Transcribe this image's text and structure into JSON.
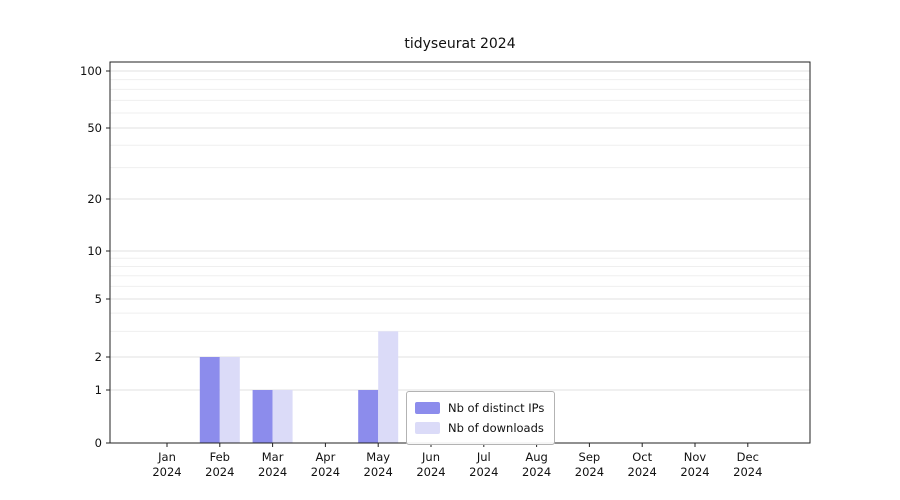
{
  "chart_data": {
    "type": "bar",
    "title": "tidyseurat 2024",
    "categories": [
      "Jan",
      "Feb",
      "Mar",
      "Apr",
      "May",
      "Jun",
      "Jul",
      "Aug",
      "Sep",
      "Oct",
      "Nov",
      "Dec"
    ],
    "year_label": "2024",
    "series": [
      {
        "name": "Nb of distinct IPs",
        "color": "#8c8cec",
        "values": [
          0,
          2,
          1,
          0,
          1,
          0,
          0,
          0,
          0,
          0,
          0,
          0
        ]
      },
      {
        "name": "Nb of downloads",
        "color": "#dbdbf8",
        "values": [
          0,
          2,
          1,
          0,
          3,
          0,
          0,
          0,
          0,
          0,
          0,
          0
        ]
      }
    ],
    "yticks": [
      0,
      1,
      2,
      5,
      10,
      20,
      50,
      100
    ],
    "yscale": "symlog",
    "ylim": [
      0,
      100
    ],
    "grid": true,
    "legend_position": "inside-bottom-center"
  }
}
